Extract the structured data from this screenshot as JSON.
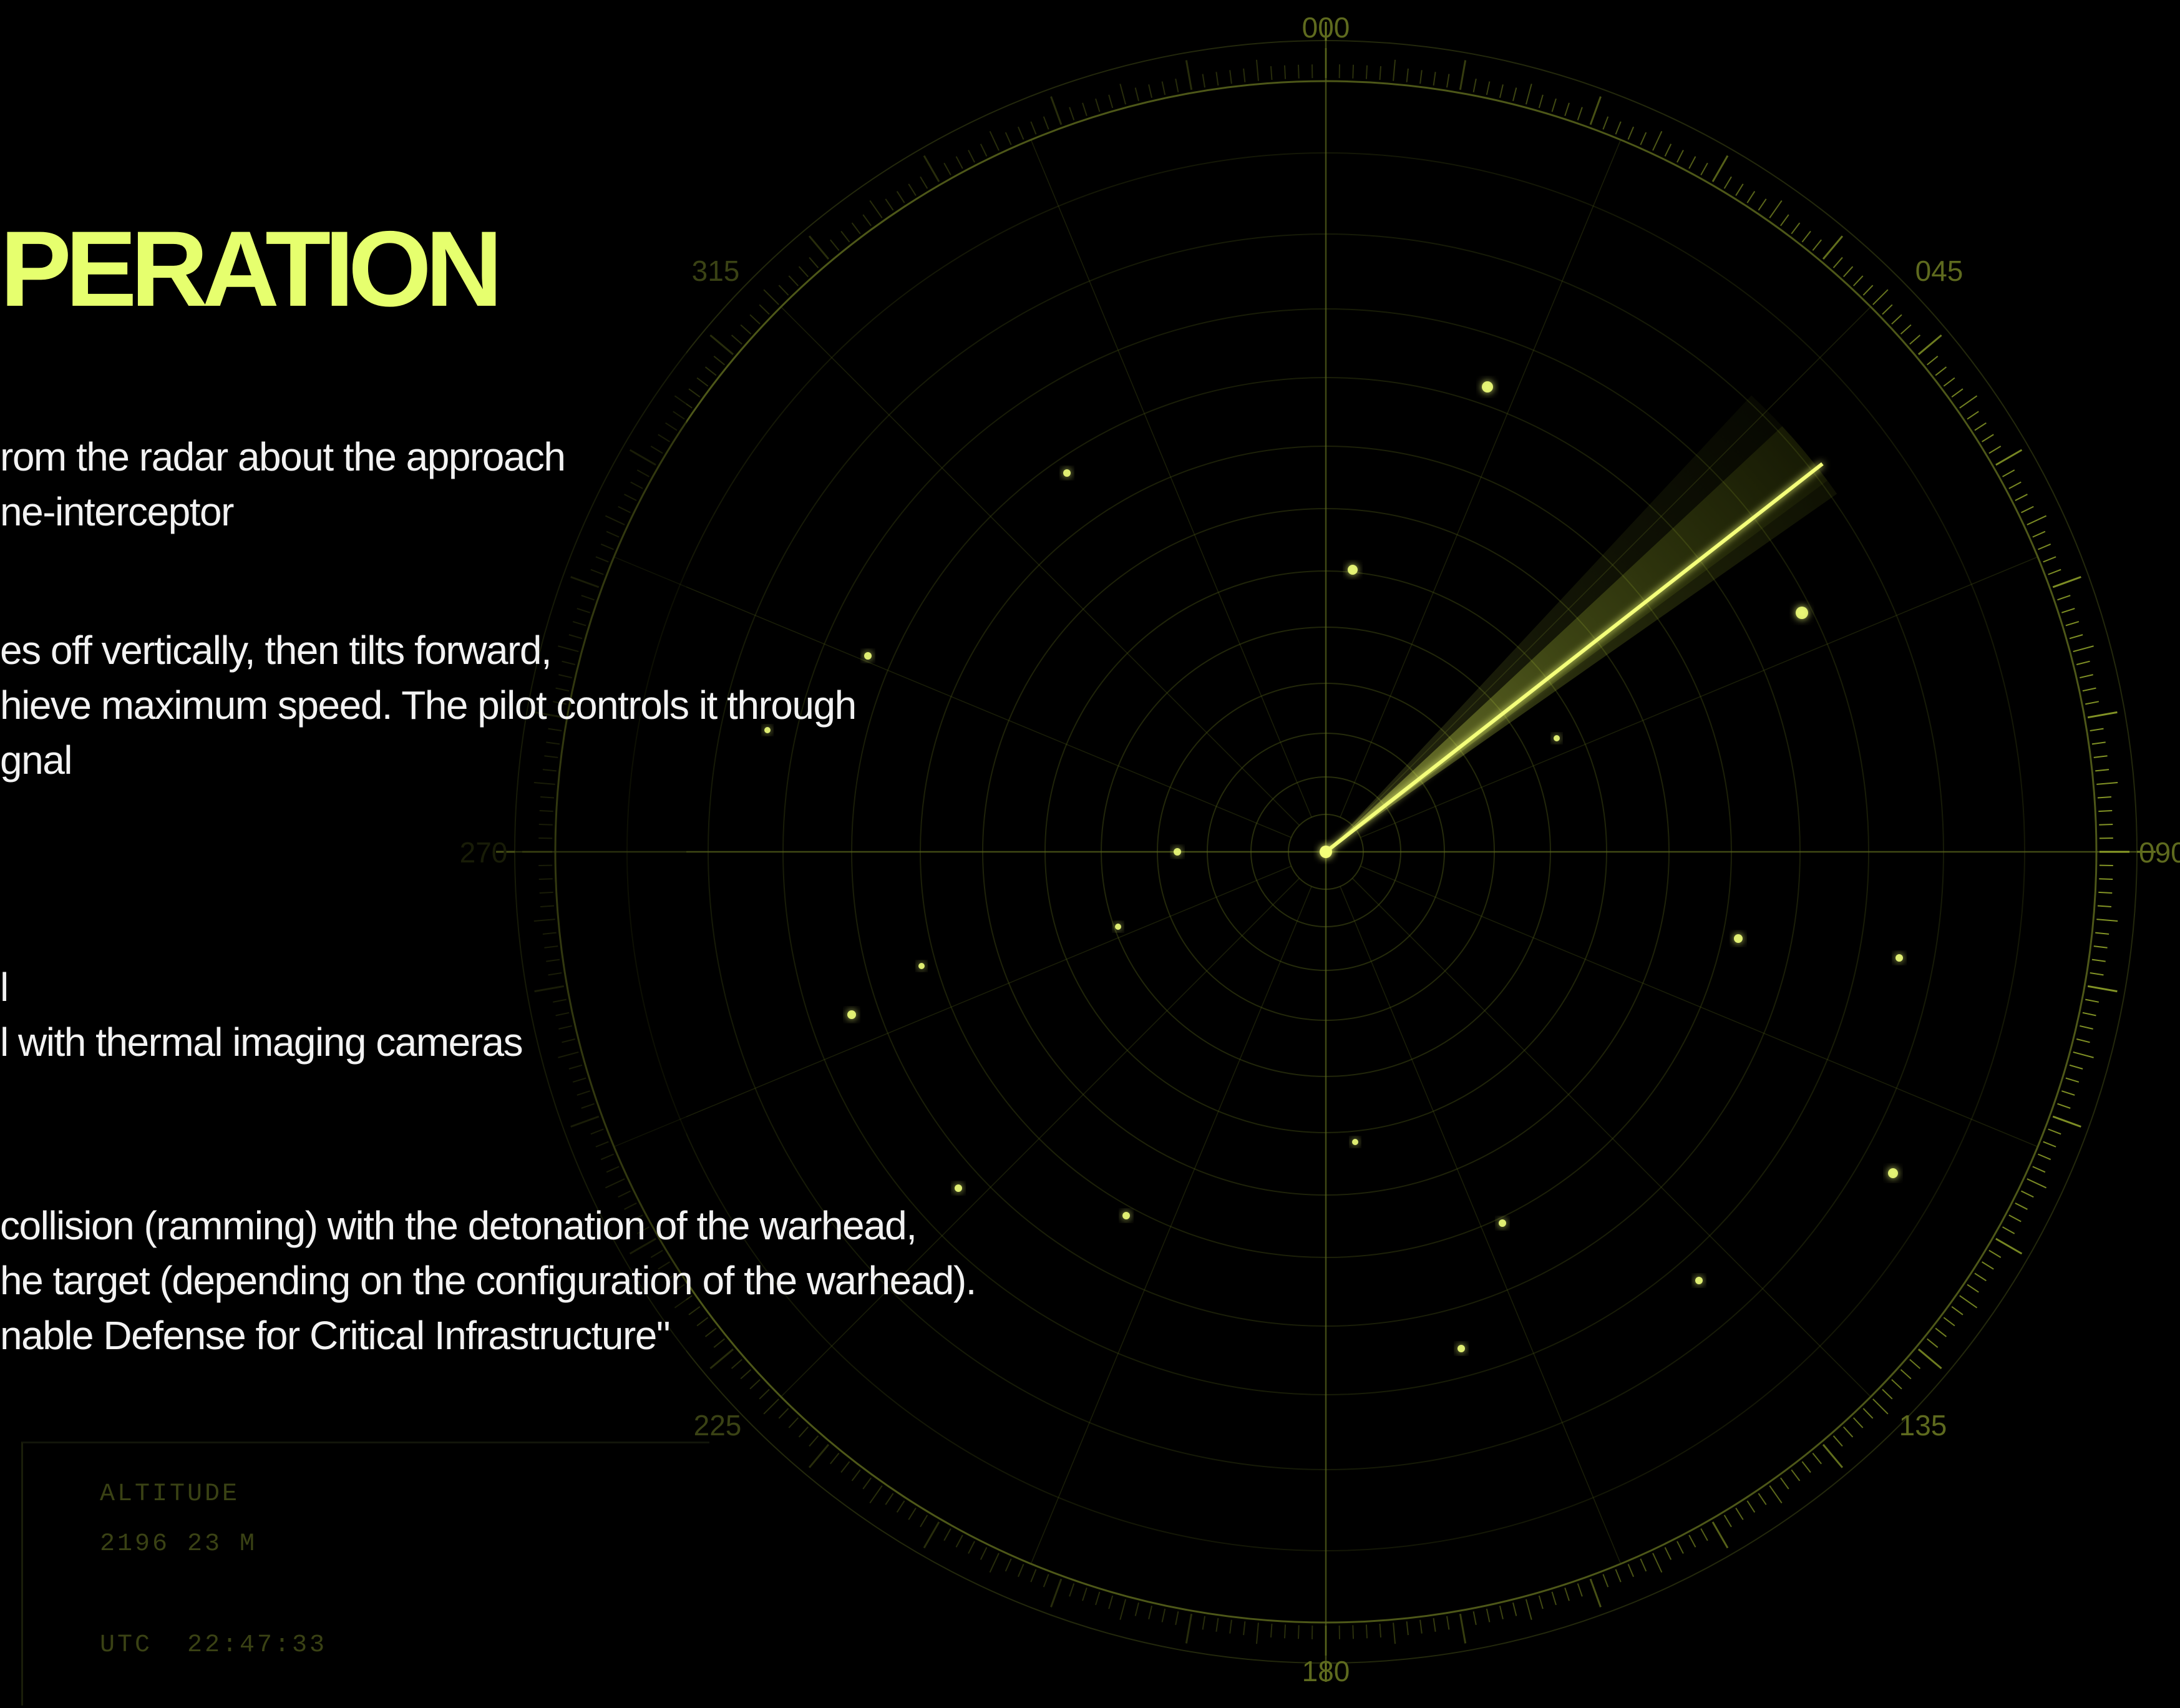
{
  "title": "PERATION",
  "paragraphs": {
    "p1": [
      "rom the radar about the approach",
      "ne-interceptor"
    ],
    "p2": [
      "es off vertically, then tilts forward,",
      "hieve maximum speed. The pilot controls it through",
      "gnal"
    ],
    "p3": [
      "l",
      "l with thermal imaging cameras"
    ],
    "p4": [
      "collision (ramming) with the detonation of the warhead,",
      "he target (depending on the configuration of the warhead).",
      "nable Defense for Critical Infrastructure\""
    ]
  },
  "hud": {
    "altitude_label": "ALTITUDE",
    "altitude_value": "2196 23 M",
    "utc_label": "UTC",
    "utc_value": "22:47:33"
  },
  "radar": {
    "bearing_labels": {
      "b000": "000",
      "b045": "045",
      "b090": "090",
      "b135": "135",
      "b180": "180",
      "b225": "225",
      "b270": "270",
      "b315": "315"
    },
    "sweep_heading_deg": 52,
    "colors": {
      "accent": "#e6ff6e",
      "grid": "#4a5516",
      "blip": "#f0ff7a",
      "background": "#000000"
    }
  }
}
